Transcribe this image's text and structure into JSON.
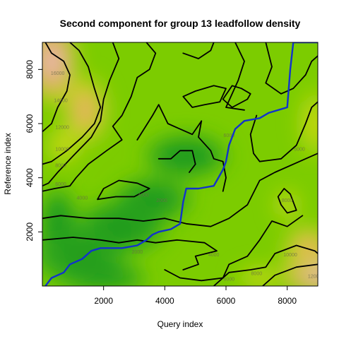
{
  "chart_data": {
    "type": "heatmap",
    "title": "Second component for group 13 leadfollow density",
    "xlabel": "Query index",
    "ylabel": "Reference index",
    "xlim": [
      0,
      9000
    ],
    "ylim": [
      0,
      9000
    ],
    "x_ticks": [
      "2000",
      "4000",
      "6000",
      "8000"
    ],
    "y_ticks": [
      "2000",
      "4000",
      "6000",
      "8000"
    ],
    "colors": {
      "low": "#1e9b1e",
      "mid": "#7ccc00",
      "yellow": "#e0dc1a",
      "orange": "#d9a24e",
      "high": "#f0c8c8",
      "contour": "#000000",
      "warp_path": "#1133cc"
    },
    "hotspots": [
      {
        "x": 450,
        "y": 8300,
        "value": 16000
      },
      {
        "x": 1400,
        "y": 6600,
        "value": 12000
      },
      {
        "x": 8900,
        "y": 400,
        "value": 12000
      },
      {
        "x": 8900,
        "y": 6200,
        "value": 8000
      },
      {
        "x": 8000,
        "y": 3000,
        "value": 8000
      }
    ],
    "contour_labels": [
      {
        "text": "16000",
        "x": 500,
        "y": 7800
      },
      {
        "text": "14000",
        "x": 600,
        "y": 6800
      },
      {
        "text": "12000",
        "x": 650,
        "y": 5800
      },
      {
        "text": "10000",
        "x": 650,
        "y": 5000
      },
      {
        "text": "8000",
        "x": 600,
        "y": 4400
      },
      {
        "text": "6000",
        "x": 600,
        "y": 3700
      },
      {
        "text": "4000",
        "x": 1300,
        "y": 3200
      },
      {
        "text": "4000",
        "x": 3300,
        "y": 3300
      },
      {
        "text": "2000",
        "x": 3900,
        "y": 3100
      },
      {
        "text": "6000",
        "x": 6100,
        "y": 5500
      },
      {
        "text": "2000",
        "x": 3100,
        "y": 1200
      },
      {
        "text": "4000",
        "x": 5600,
        "y": 1100
      },
      {
        "text": "6000",
        "x": 6100,
        "y": 200
      },
      {
        "text": "8000",
        "x": 7000,
        "y": 400
      },
      {
        "text": "10000",
        "x": 8100,
        "y": 1100
      },
      {
        "text": "12000",
        "x": 8900,
        "y": 300
      },
      {
        "text": "6000",
        "x": 8400,
        "y": 5000
      },
      {
        "text": "8000",
        "x": 8000,
        "y": 3100
      }
    ],
    "warp_path": [
      [
        100,
        0
      ],
      [
        300,
        300
      ],
      [
        700,
        500
      ],
      [
        900,
        800
      ],
      [
        1300,
        1000
      ],
      [
        1600,
        1300
      ],
      [
        1900,
        1400
      ],
      [
        2200,
        1400
      ],
      [
        2600,
        1400
      ],
      [
        3100,
        1500
      ],
      [
        3400,
        1700
      ],
      [
        3600,
        1900
      ],
      [
        3800,
        2000
      ],
      [
        4200,
        2100
      ],
      [
        4500,
        2300
      ],
      [
        4600,
        3100
      ],
      [
        4700,
        3600
      ],
      [
        5100,
        3600
      ],
      [
        5600,
        3700
      ],
      [
        5900,
        4300
      ],
      [
        6000,
        4600
      ],
      [
        6100,
        5200
      ],
      [
        6300,
        5800
      ],
      [
        6600,
        6100
      ],
      [
        7100,
        6200
      ],
      [
        7400,
        6400
      ],
      [
        8000,
        6600
      ],
      [
        8100,
        8000
      ],
      [
        8200,
        9000
      ],
      [
        9000,
        9000
      ]
    ]
  }
}
